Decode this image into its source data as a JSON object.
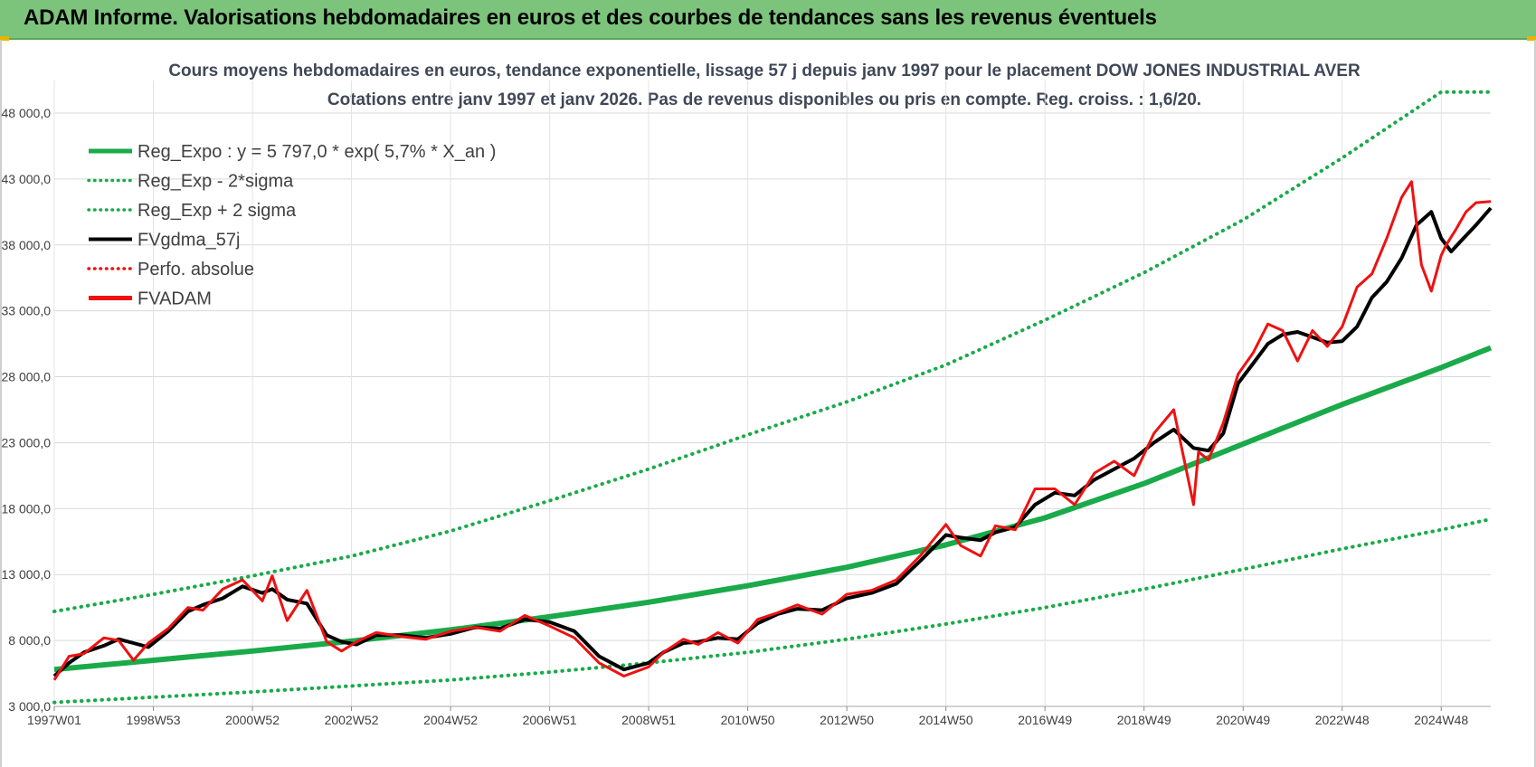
{
  "banner": {
    "title": "ADAM Informe. Valorisations hebdomadaires en euros et des courbes de tendances sans les revenus éventuels"
  },
  "colors": {
    "banner_bg": "#7cc47c",
    "reg_green": "#1aaa4a",
    "black": "#000000",
    "red": "#ee1111"
  },
  "chart_data": {
    "type": "line",
    "title_line1": "Cours moyens hebdomadaires en euros, tendance exponentielle, lissage 57 j depuis janv 1997 pour le placement DOW JONES INDUSTRIAL AVER",
    "title_line2": "Cotations entre janv 1997 et janv 2026. Pas de revenus disponibles ou pris en compte. Reg. croiss. : 1,6/20.",
    "x_axis": {
      "start": 1997.0,
      "end": 2026.0,
      "tick_labels": [
        "1997W01",
        "1998W53",
        "2000W52",
        "2002W52",
        "2004W52",
        "2006W51",
        "2008W51",
        "2010W50",
        "2012W50",
        "2014W50",
        "2016W49",
        "2018W49",
        "2020W49",
        "2022W48",
        "2024W48"
      ],
      "tick_years": [
        1997.0,
        1999.0,
        2001.0,
        2003.0,
        2005.0,
        2007.0,
        2009.0,
        2011.0,
        2013.0,
        2015.0,
        2017.0,
        2019.0,
        2021.0,
        2023.0,
        2025.0
      ]
    },
    "y_axis": {
      "min": 3000,
      "max": 48000,
      "ticks": [
        3000,
        8000,
        13000,
        18000,
        23000,
        28000,
        33000,
        38000,
        43000,
        48000
      ],
      "tick_labels": [
        "3 000,0",
        "8 000,0",
        "13 000,0",
        "18 000,0",
        "23 000,0",
        "28 000,0",
        "33 000,0",
        "38 000,0",
        "43 000,0",
        "48 000,0"
      ],
      "grid": true
    },
    "legend_position": "top-left",
    "legend": [
      {
        "label": "Reg_Expo : y = 5 797,0 * exp( 5,7% *  X_an )",
        "color": "#1aaa4a",
        "style": "solid-thick"
      },
      {
        "label": "Reg_Exp - 2*sigma",
        "color": "#1aaa4a",
        "style": "dotted"
      },
      {
        "label": "Reg_Exp + 2 sigma",
        "color": "#1aaa4a",
        "style": "dotted"
      },
      {
        "label": "FVgdma_57j",
        "color": "#000000",
        "style": "solid"
      },
      {
        "label": "Perfo. absolue",
        "color": "#ee1111",
        "style": "dotted"
      },
      {
        "label": "FVADAM",
        "color": "#ee1111",
        "style": "solid-thick"
      }
    ],
    "series": [
      {
        "name": "Reg_Expo : y = 5 797,0 * exp( 5,7% *  X_an )",
        "x": [
          1997,
          1999,
          2001,
          2003,
          2005,
          2007,
          2009,
          2011,
          2013,
          2015,
          2017,
          2019,
          2021,
          2023,
          2025,
          2026
        ],
        "values": [
          5797,
          6500,
          7200,
          7950,
          8800,
          9800,
          10900,
          12150,
          13550,
          15250,
          17300,
          19900,
          22900,
          25900,
          28700,
          30200
        ]
      },
      {
        "name": "Reg_Exp - 2*sigma",
        "x": [
          1997,
          1999,
          2001,
          2003,
          2005,
          2007,
          2009,
          2011,
          2013,
          2015,
          2017,
          2019,
          2021,
          2023,
          2025,
          2026
        ],
        "values": [
          3300,
          3700,
          4100,
          4550,
          5000,
          5600,
          6300,
          7100,
          8100,
          9250,
          10500,
          11900,
          13400,
          14950,
          16400,
          17200
        ]
      },
      {
        "name": "Reg_Exp + 2 sigma",
        "x": [
          1997,
          1999,
          2001,
          2003,
          2005,
          2007,
          2009,
          2011,
          2013,
          2015,
          2017,
          2019,
          2021,
          2023,
          2025,
          2026
        ],
        "values": [
          10200,
          11500,
          12900,
          14400,
          16300,
          18600,
          21000,
          23600,
          26100,
          28900,
          32300,
          35900,
          39900,
          44600,
          49600,
          49600
        ]
      },
      {
        "name": "FVgdma_57j",
        "x": [
          1997.0,
          1997.3,
          1997.6,
          1998.0,
          1998.3,
          1998.6,
          1998.9,
          1999.3,
          1999.7,
          2000.0,
          2000.4,
          2000.8,
          2001.2,
          2001.4,
          2001.7,
          2002.1,
          2002.5,
          2002.8,
          2003.1,
          2003.5,
          2004.0,
          2004.5,
          2005.0,
          2005.5,
          2006.0,
          2006.5,
          2007.0,
          2007.5,
          2008.0,
          2008.5,
          2009.0,
          2009.3,
          2009.7,
          2010.0,
          2010.4,
          2010.8,
          2011.2,
          2011.6,
          2012.0,
          2012.5,
          2013.0,
          2013.5,
          2014.0,
          2014.5,
          2015.0,
          2015.3,
          2015.7,
          2016.0,
          2016.4,
          2016.8,
          2017.2,
          2017.6,
          2018.0,
          2018.4,
          2018.8,
          2019.2,
          2019.6,
          2020.0,
          2020.3,
          2020.6,
          2020.9,
          2021.2,
          2021.5,
          2021.8,
          2022.1,
          2022.4,
          2022.7,
          2023.0,
          2023.3,
          2023.6,
          2023.9,
          2024.2,
          2024.5,
          2024.8,
          2025.0,
          2025.2,
          2025.4,
          2025.7,
          2026.0
        ],
        "values": [
          5300,
          6300,
          7100,
          7600,
          8100,
          7800,
          7500,
          8700,
          10200,
          10700,
          11200,
          12100,
          11600,
          11900,
          11100,
          10800,
          8400,
          7900,
          7700,
          8400,
          8400,
          8200,
          8500,
          9000,
          8900,
          9600,
          9400,
          8700,
          6800,
          5800,
          6300,
          7100,
          7800,
          7900,
          8200,
          8100,
          9300,
          10000,
          10400,
          10300,
          11200,
          11600,
          12300,
          14100,
          16000,
          15800,
          15600,
          16200,
          16600,
          18300,
          19200,
          19000,
          20200,
          21000,
          21800,
          23000,
          24000,
          22600,
          22400,
          23700,
          27500,
          29000,
          30500,
          31200,
          31400,
          31000,
          30600,
          30700,
          31800,
          34000,
          35200,
          37000,
          39500,
          40500,
          38500,
          37500,
          38300,
          39500,
          40800
        ]
      },
      {
        "name": "FVADAM",
        "x": [
          1997.0,
          1997.3,
          1997.6,
          1998.0,
          1998.3,
          1998.6,
          1998.9,
          1999.3,
          1999.7,
          2000.0,
          2000.4,
          2000.8,
          2001.2,
          2001.4,
          2001.7,
          2002.1,
          2002.5,
          2002.8,
          2003.1,
          2003.5,
          2004.0,
          2004.5,
          2005.0,
          2005.5,
          2006.0,
          2006.5,
          2007.0,
          2007.5,
          2008.0,
          2008.5,
          2009.0,
          2009.3,
          2009.7,
          2010.0,
          2010.4,
          2010.8,
          2011.2,
          2011.6,
          2012.0,
          2012.5,
          2013.0,
          2013.5,
          2014.0,
          2014.5,
          2015.0,
          2015.3,
          2015.7,
          2016.0,
          2016.4,
          2016.8,
          2017.2,
          2017.6,
          2018.0,
          2018.4,
          2018.8,
          2019.2,
          2019.6,
          2020.0,
          2020.1,
          2020.3,
          2020.6,
          2020.9,
          2021.2,
          2021.5,
          2021.8,
          2022.1,
          2022.4,
          2022.7,
          2023.0,
          2023.3,
          2023.6,
          2023.9,
          2024.2,
          2024.4,
          2024.6,
          2024.8,
          2025.0,
          2025.1,
          2025.3,
          2025.5,
          2025.7,
          2026.0
        ],
        "values": [
          5000,
          6800,
          7000,
          8200,
          8000,
          6500,
          7800,
          8900,
          10500,
          10300,
          11900,
          12600,
          11000,
          12900,
          9500,
          11800,
          7900,
          7200,
          7900,
          8600,
          8300,
          8100,
          8700,
          9000,
          8700,
          9900,
          9100,
          8200,
          6300,
          5300,
          6000,
          7100,
          8100,
          7700,
          8600,
          7800,
          9600,
          10100,
          10700,
          10000,
          11500,
          11800,
          12600,
          14500,
          16800,
          15200,
          14400,
          16700,
          16400,
          19500,
          19500,
          18300,
          20700,
          21600,
          20500,
          23700,
          25500,
          18300,
          22300,
          21700,
          24500,
          28200,
          29800,
          32000,
          31500,
          29200,
          31500,
          30300,
          31800,
          34800,
          35800,
          38500,
          41600,
          42800,
          36500,
          34500,
          37200,
          38000,
          39200,
          40500,
          41200,
          41300
        ]
      }
    ]
  }
}
